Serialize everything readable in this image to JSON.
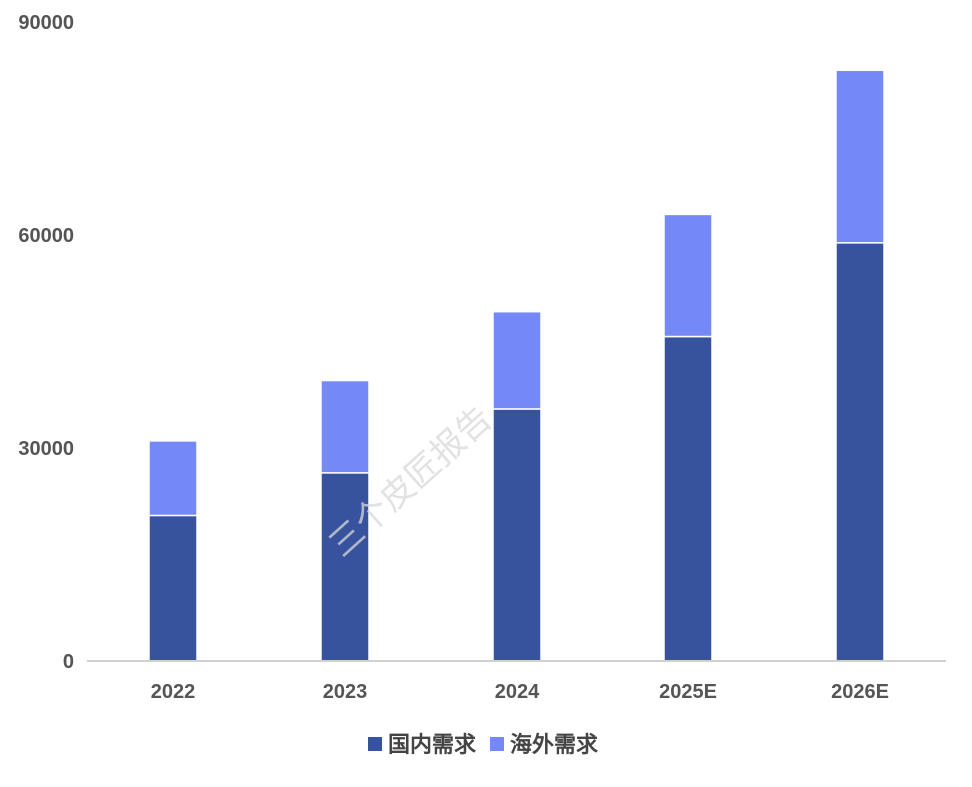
{
  "chart_data": {
    "type": "bar",
    "stacked": true,
    "categories": [
      "2022",
      "2023",
      "2024",
      "2025E",
      "2026E"
    ],
    "series": [
      {
        "name": "国内需求",
        "color": "#37539E",
        "values": [
          20500,
          26500,
          35500,
          45700,
          58900
        ]
      },
      {
        "name": "海外需求",
        "color": "#7489F5",
        "values": [
          10500,
          13000,
          13700,
          17200,
          24300
        ]
      }
    ],
    "ylim": [
      0,
      90000
    ],
    "yticks": [
      "0",
      "30000",
      "60000",
      "90000"
    ],
    "grid": false,
    "legend_position": "bottom-center",
    "title": "",
    "xlabel": "",
    "ylabel": ""
  },
  "watermark": "三个皮匠报告"
}
